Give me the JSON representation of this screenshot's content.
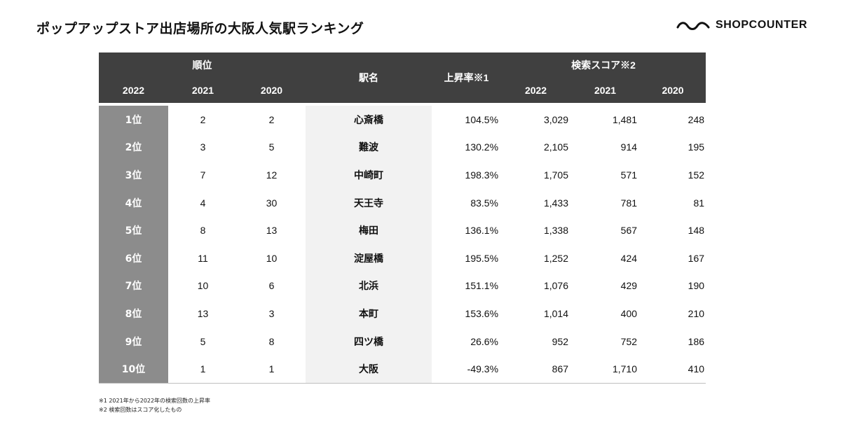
{
  "title": "ポップアップストア出店場所の大阪人気駅ランキング",
  "brand": {
    "name": "SHOPCOUNTER",
    "logo_icon": "wave-logo-icon"
  },
  "table": {
    "group_headers": {
      "rank": "順位",
      "station": "駅名",
      "rate": "上昇率※1",
      "score": "検索スコア※2"
    },
    "year_headers": {
      "rank_2022": "2022",
      "rank_2021": "2021",
      "rank_2020": "2020",
      "score_2022": "2022",
      "score_2021": "2021",
      "score_2020": "2020"
    },
    "rows": [
      {
        "rank": "1位",
        "r2021": "2",
        "r2020": "2",
        "station": "心斎橋",
        "rate": "104.5%",
        "s2022": "3,029",
        "s2021": "1,481",
        "s2020": "248"
      },
      {
        "rank": "2位",
        "r2021": "3",
        "r2020": "5",
        "station": "難波",
        "rate": "130.2%",
        "s2022": "2,105",
        "s2021": "914",
        "s2020": "195"
      },
      {
        "rank": "3位",
        "r2021": "7",
        "r2020": "12",
        "station": "中崎町",
        "rate": "198.3%",
        "s2022": "1,705",
        "s2021": "571",
        "s2020": "152"
      },
      {
        "rank": "4位",
        "r2021": "4",
        "r2020": "30",
        "station": "天王寺",
        "rate": "83.5%",
        "s2022": "1,433",
        "s2021": "781",
        "s2020": "81"
      },
      {
        "rank": "5位",
        "r2021": "8",
        "r2020": "13",
        "station": "梅田",
        "rate": "136.1%",
        "s2022": "1,338",
        "s2021": "567",
        "s2020": "148"
      },
      {
        "rank": "6位",
        "r2021": "11",
        "r2020": "10",
        "station": "淀屋橋",
        "rate": "195.5%",
        "s2022": "1,252",
        "s2021": "424",
        "s2020": "167"
      },
      {
        "rank": "7位",
        "r2021": "10",
        "r2020": "6",
        "station": "北浜",
        "rate": "151.1%",
        "s2022": "1,076",
        "s2021": "429",
        "s2020": "190"
      },
      {
        "rank": "8位",
        "r2021": "13",
        "r2020": "3",
        "station": "本町",
        "rate": "153.6%",
        "s2022": "1,014",
        "s2021": "400",
        "s2020": "210"
      },
      {
        "rank": "9位",
        "r2021": "5",
        "r2020": "8",
        "station": "四ツ橋",
        "rate": "26.6%",
        "s2022": "952",
        "s2021": "752",
        "s2020": "186"
      },
      {
        "rank": "10位",
        "r2021": "1",
        "r2020": "1",
        "station": "大阪",
        "rate": "-49.3%",
        "s2022": "867",
        "s2021": "1,710",
        "s2020": "410"
      }
    ]
  },
  "notes": [
    "※1 2021年から2022年の検索回数の上昇率",
    "※2 検索回数はスコア化したもの"
  ],
  "colors": {
    "header_bg": "#404040",
    "rank_col_bg": "#8c8c8c",
    "station_col_bg": "#f2f2f2"
  }
}
